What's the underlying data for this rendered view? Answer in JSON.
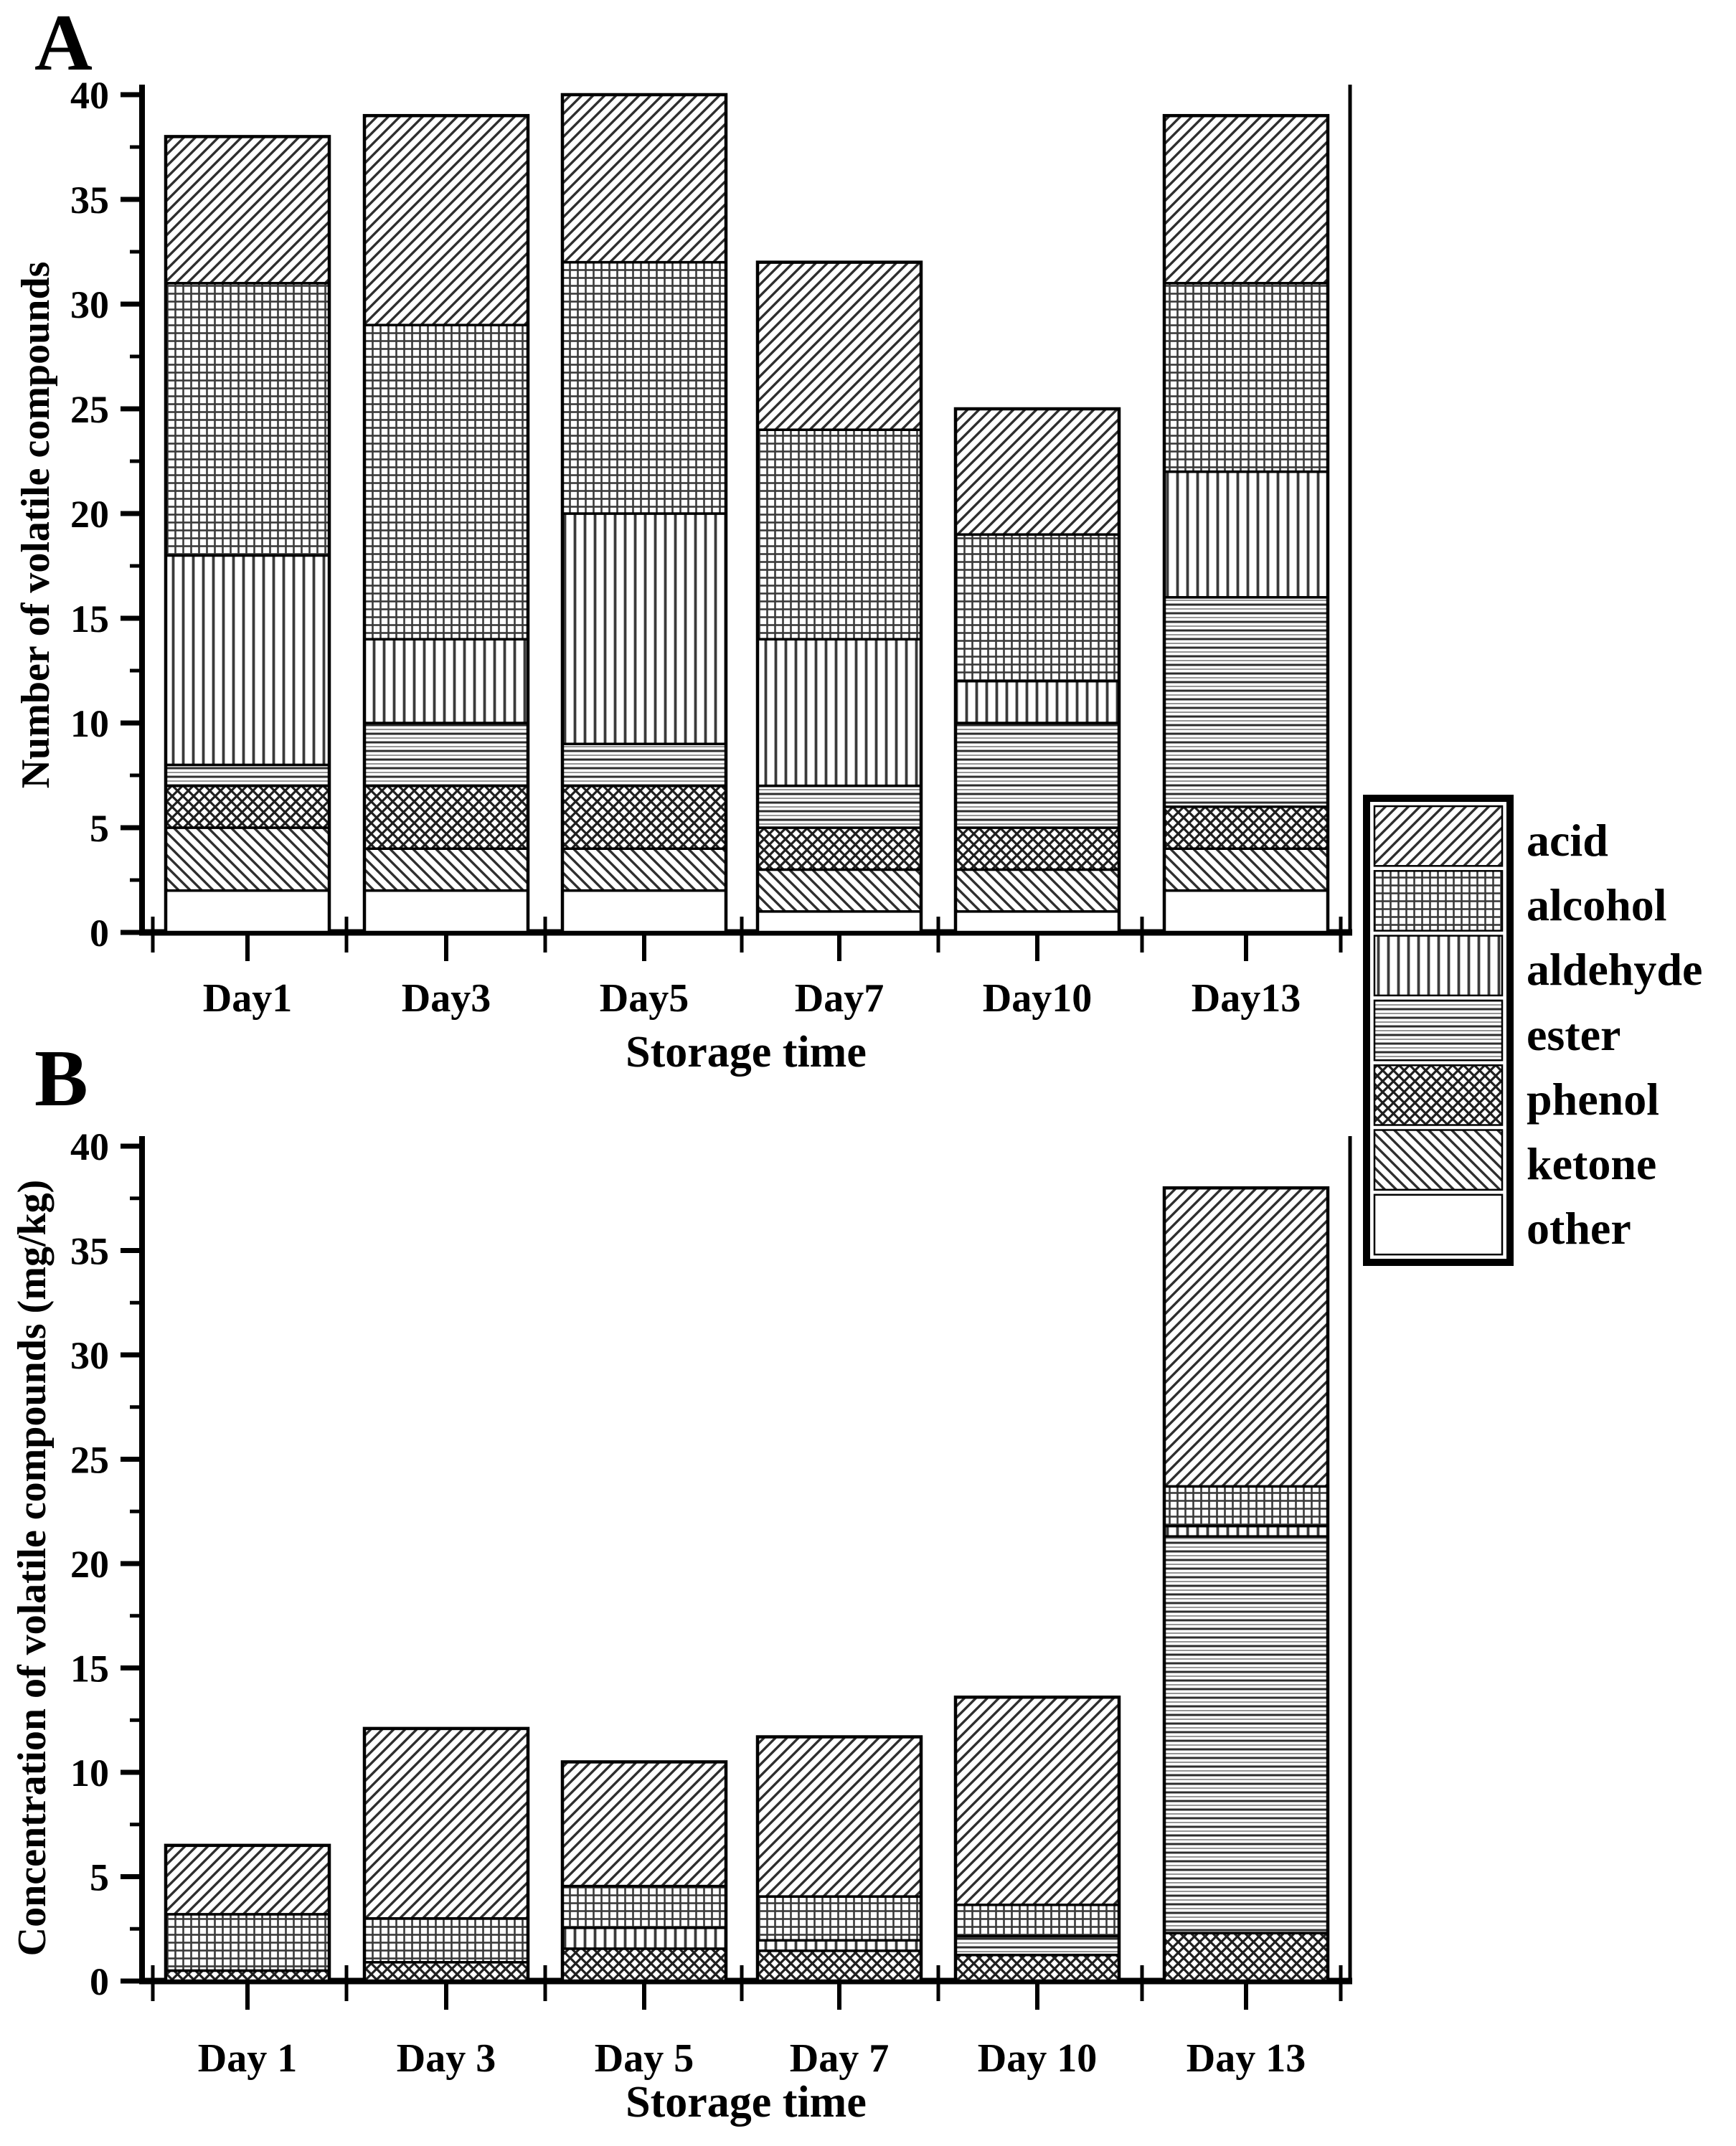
{
  "figure": {
    "background": "#ffffff",
    "ink": "#000000",
    "hatch_color": "#2e2e2e"
  },
  "legend": {
    "items": [
      {
        "label": "acid",
        "series": "acid"
      },
      {
        "label": "alcohol",
        "series": "alcohol"
      },
      {
        "label": "aldehyde",
        "series": "aldehyde"
      },
      {
        "label": "ester",
        "series": "ester"
      },
      {
        "label": "phenol",
        "series": "phenol"
      },
      {
        "label": "ketone",
        "series": "ketone"
      },
      {
        "label": "other",
        "series": "other"
      }
    ]
  },
  "chart_data": [
    {
      "type": "bar",
      "stacked": true,
      "panel_label": "A",
      "title": "",
      "xlabel": "Storage time",
      "ylabel": "Number of volatile compounds",
      "categories": [
        "Day1",
        "Day3",
        "Day5",
        "Day7",
        "Day10",
        "Day13"
      ],
      "ylim": [
        0,
        40
      ],
      "yticks": [
        0,
        5,
        10,
        15,
        20,
        25,
        30,
        35,
        40
      ],
      "minor_tick_step": 2.5,
      "grid": false,
      "legend_position": "right-outside",
      "series": [
        {
          "name": "other",
          "values": [
            2,
            2,
            2,
            1,
            1,
            2
          ]
        },
        {
          "name": "ketone",
          "values": [
            3,
            2,
            2,
            2,
            2,
            2
          ]
        },
        {
          "name": "phenol",
          "values": [
            2,
            3,
            3,
            2,
            2,
            2
          ]
        },
        {
          "name": "ester",
          "values": [
            1,
            3,
            2,
            2,
            5,
            10
          ]
        },
        {
          "name": "aldehyde",
          "values": [
            10,
            4,
            11,
            7,
            2,
            6
          ]
        },
        {
          "name": "alcohol",
          "values": [
            13,
            15,
            12,
            10,
            7,
            9
          ]
        },
        {
          "name": "acid",
          "values": [
            7,
            10,
            8,
            8,
            6,
            8
          ]
        }
      ],
      "totals": [
        38,
        39,
        40,
        32,
        25,
        39
      ]
    },
    {
      "type": "bar",
      "stacked": true,
      "panel_label": "B",
      "title": "",
      "xlabel": "Storage time",
      "ylabel": "Concentration of volatile compounds (mg/kg)",
      "categories": [
        "Day 1",
        "Day 3",
        "Day 5",
        "Day 7",
        "Day 10",
        "Day 13"
      ],
      "ylim": [
        0,
        40
      ],
      "yticks": [
        0,
        5,
        10,
        15,
        20,
        25,
        30,
        35,
        40
      ],
      "minor_tick_step": 2.5,
      "grid": false,
      "series": [
        {
          "name": "other",
          "values": [
            0,
            0,
            0,
            0,
            0,
            0
          ]
        },
        {
          "name": "ketone",
          "values": [
            0,
            0,
            0,
            0,
            0,
            0
          ]
        },
        {
          "name": "phenol",
          "values": [
            0.5,
            0.9,
            1.55,
            1.45,
            1.25,
            2.3
          ]
        },
        {
          "name": "ester",
          "values": [
            0,
            0,
            0,
            0,
            0.9,
            19.0
          ]
        },
        {
          "name": "aldehyde",
          "values": [
            0,
            0,
            1.0,
            0.5,
            0,
            0.5
          ]
        },
        {
          "name": "alcohol",
          "values": [
            2.7,
            2.1,
            2.0,
            2.1,
            1.5,
            1.9
          ]
        },
        {
          "name": "acid",
          "values": [
            3.3,
            9.1,
            5.95,
            7.65,
            9.95,
            14.3
          ]
        }
      ],
      "totals": [
        6.5,
        12.1,
        10.5,
        11.7,
        13.6,
        38.0
      ]
    }
  ]
}
